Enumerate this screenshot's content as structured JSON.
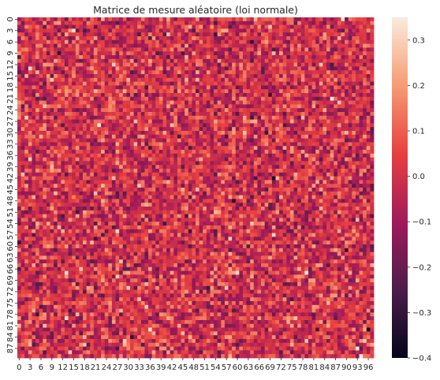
{
  "chart_data": {
    "type": "heatmap",
    "title": "Matrice de mesure aléatoire (loi normale)",
    "rows": 90,
    "cols": 98,
    "distribution": "normal",
    "mean": 0.0,
    "std": 0.1,
    "value_range": [
      -0.4,
      0.35
    ],
    "x_tick_labels": [
      "0",
      "3",
      "6",
      "9",
      "12",
      "15",
      "18",
      "21",
      "24",
      "27",
      "30",
      "33",
      "36",
      "39",
      "42",
      "45",
      "48",
      "51",
      "54",
      "57",
      "60",
      "63",
      "66",
      "69",
      "72",
      "75",
      "78",
      "81",
      "84",
      "87",
      "90",
      "93",
      "96"
    ],
    "y_tick_labels": [
      "0",
      "3",
      "6",
      "9",
      "12",
      "15",
      "18",
      "21",
      "24",
      "27",
      "30",
      "33",
      "36",
      "39",
      "42",
      "45",
      "48",
      "51",
      "54",
      "57",
      "60",
      "63",
      "66",
      "69",
      "72",
      "75",
      "78",
      "81",
      "84",
      "87"
    ],
    "colorbar": {
      "ticks": [
        -0.4,
        -0.3,
        -0.2,
        -0.1,
        0.0,
        0.1,
        0.2,
        0.3
      ],
      "tick_labels": [
        "−0.4",
        "−0.3",
        "−0.2",
        "−0.1",
        "0.0",
        "0.1",
        "0.2",
        "0.3"
      ]
    },
    "colormap": [
      "#03051a",
      "#4c1d4b",
      "#a11a5b",
      "#e83f3f",
      "#f69c73",
      "#faebdd"
    ],
    "grid": false
  }
}
